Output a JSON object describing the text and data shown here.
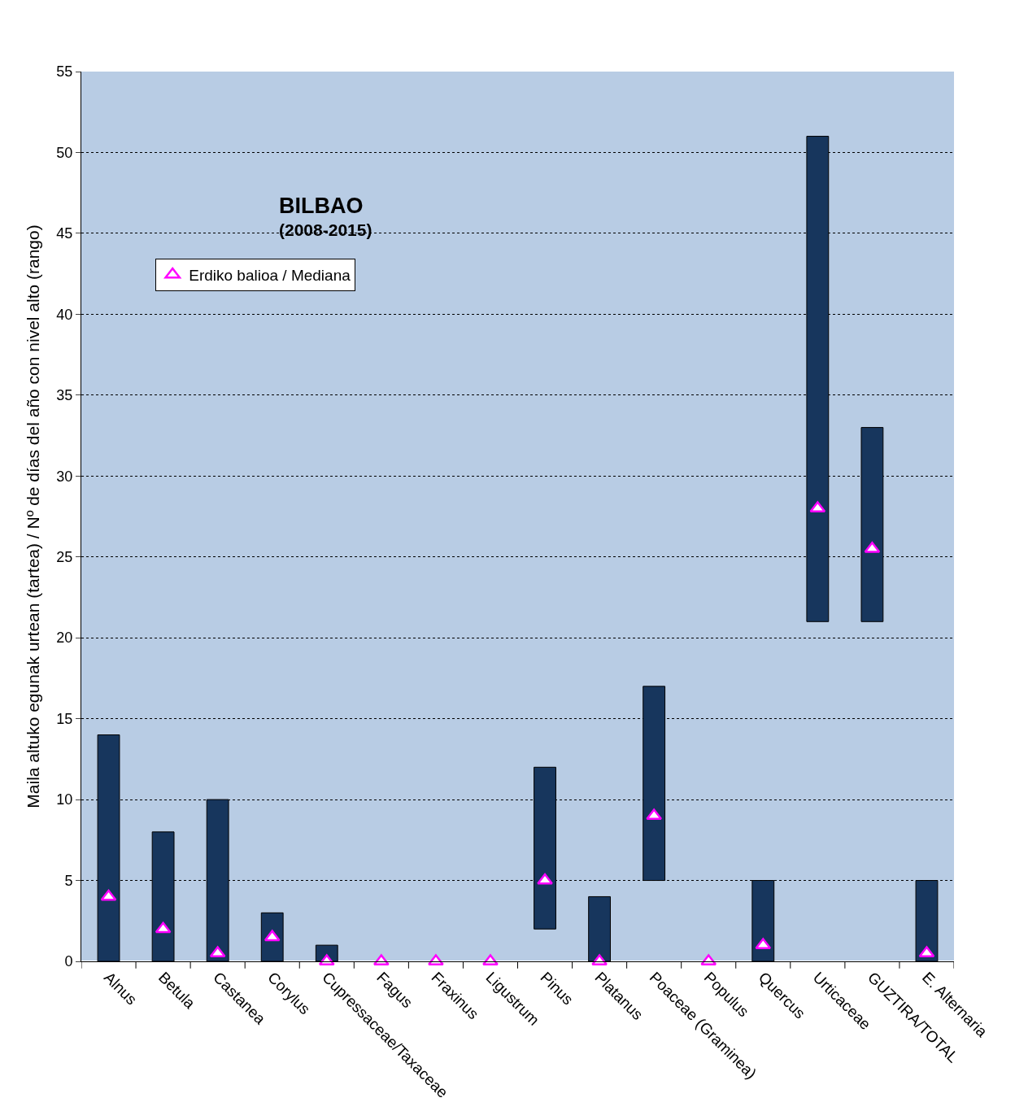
{
  "chart_data": {
    "type": "bar",
    "title": "BILBAO",
    "subtitle": "(2008-2015)",
    "ylabel": "Maila altuko egunak urtean (tartea) / Nº de días del año con nivel alto (rango)",
    "categories": [
      "Alnus",
      "Betula",
      "Castanea",
      "Corylus",
      "Cupressaceae/Taxaceae",
      "Fagus",
      "Fraxinus",
      "Ligustrum",
      "Pinus",
      "Platanus",
      "Poaceae (Graminea)",
      "Populus",
      "Quercus",
      "Urticaceae",
      "GUZTIRA/TOTAL",
      "E. Alternaria"
    ],
    "series": [
      {
        "color": "#17365d",
        "base": [
          0,
          0,
          0,
          0,
          0,
          null,
          null,
          null,
          2,
          0,
          5,
          null,
          0,
          21,
          21,
          0
        ],
        "values": [
          14,
          8,
          10,
          3,
          1,
          null,
          null,
          null,
          10,
          4,
          12,
          null,
          5,
          30,
          12,
          5
        ]
      },
      {
        "type": "scatter",
        "name": "Erdiko balioa / Mediana",
        "color": "#ff00ff",
        "marker": "triangle",
        "values": [
          4,
          2,
          0.5,
          1.5,
          0,
          0,
          0,
          0,
          5,
          0,
          9,
          0,
          1,
          28,
          25.5,
          0.5
        ]
      }
    ],
    "ylim": [
      0,
      55
    ],
    "yticks": [
      0,
      5,
      10,
      15,
      20,
      25,
      30,
      35,
      40,
      45,
      50,
      55
    ],
    "grid": "y",
    "legend": "top left"
  }
}
